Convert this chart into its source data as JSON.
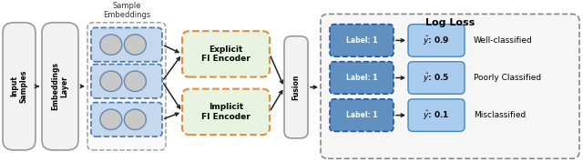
{
  "fig_width": 6.4,
  "fig_height": 1.78,
  "dpi": 100,
  "bg_color": "#ffffff",
  "input_samples_text": "Input\nSamples",
  "embeddings_layer_text": "Embeddings\nLayer",
  "sample_embeddings_label": "Sample\nEmbeddings",
  "explicit_fi_text": "Explicit\nFI Encoder",
  "implicit_fi_text": "Implicit\nFI Encoder",
  "fusion_text": "Fusion",
  "log_loss_title": "Log Loss",
  "label_text": "Label: 1",
  "rows": [
    {
      "y_hat": "0.9",
      "label": "Well-classified"
    },
    {
      "y_hat": "0.5",
      "label": "Poorly Classified"
    },
    {
      "y_hat": "0.1",
      "label": "Misclassified"
    }
  ],
  "box_gray_fill": "#f2f2f2",
  "box_gray_edge": "#999999",
  "box_blue_fill": "#c5d8ee",
  "box_blue_edge": "#4a7aaa",
  "box_green_fill": "#e8f3e0",
  "box_orange_edge": "#e09040",
  "box_label_fill": "#6090c0",
  "box_label_edge": "#2255aa",
  "box_yhat_fill": "#aaccee",
  "box_yhat_edge": "#4488bb",
  "outer_dash_edge": "#999999",
  "ll_outer_dash_edge": "#888888",
  "circle_fill": "#c8c8c8",
  "circle_edge": "#6688aa"
}
